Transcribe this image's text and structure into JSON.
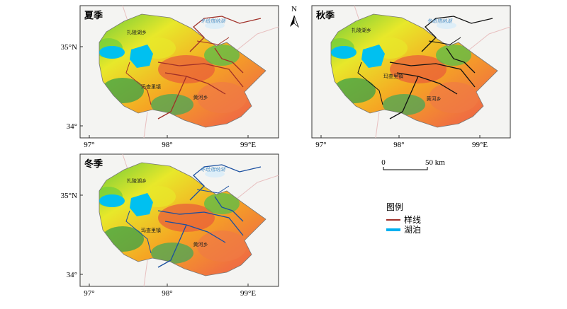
{
  "panels": [
    {
      "title": "夏季",
      "places": [
        "扎陵湖乡",
        "冬给措纳湖",
        "玛查里镇",
        "黄河乡"
      ],
      "lat_labels": [
        "35°N",
        "34°"
      ],
      "lon_labels": [
        "97°",
        "98°",
        "99°E"
      ]
    },
    {
      "title": "秋季",
      "places": [
        "扎陵湖乡",
        "冬给措纳湖",
        "玛查里镇",
        "黄河乡"
      ],
      "lat_labels": [],
      "lon_labels": [
        "97°",
        "98°",
        "99°E"
      ]
    },
    {
      "title": "冬季",
      "places": [
        "扎陵湖乡",
        "冬给措纳湖",
        "玛查里镇",
        "黄河乡"
      ],
      "lat_labels": [
        "35°N",
        "34°"
      ],
      "lon_labels": [
        "97°",
        "98°",
        "99°E"
      ]
    }
  ],
  "north_arrow": "N",
  "scale_bar": {
    "start": "0",
    "end": "50 km"
  },
  "legend": {
    "title": "图例",
    "items": [
      "样线",
      "湖泊"
    ]
  }
}
